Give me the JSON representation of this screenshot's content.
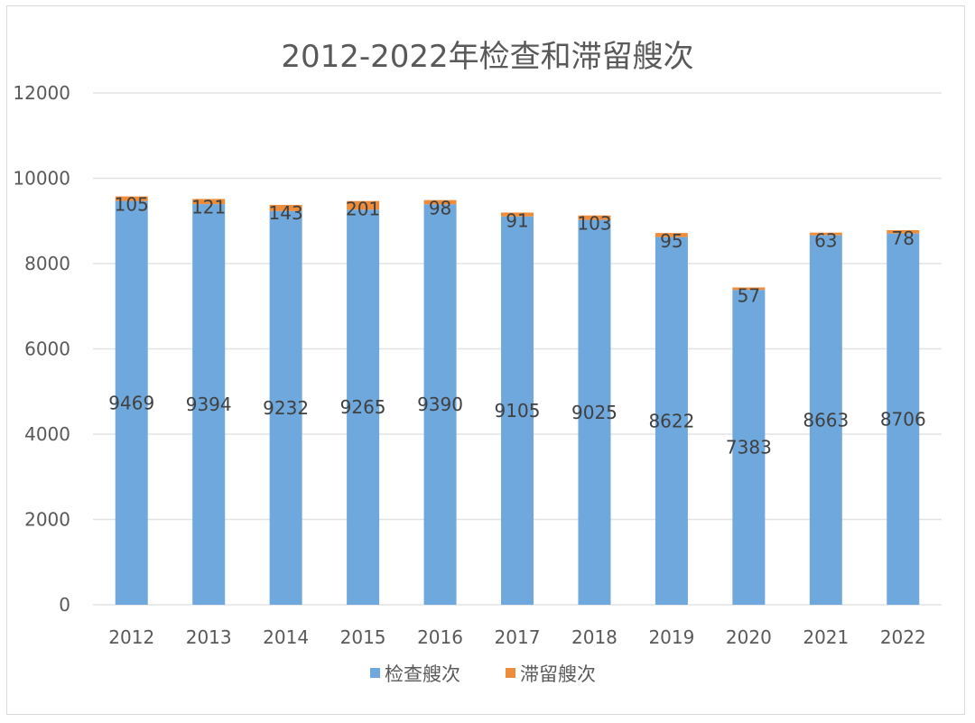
{
  "chart_data": {
    "type": "bar",
    "stacked": true,
    "title": "2012-2022年检查和滞留艘次",
    "xlabel": "",
    "ylabel": "",
    "categories": [
      "2012",
      "2013",
      "2014",
      "2015",
      "2016",
      "2017",
      "2018",
      "2019",
      "2020",
      "2021",
      "2022"
    ],
    "series": [
      {
        "name": "检查艘次",
        "color": "#6fa8dc",
        "values": [
          9469,
          9394,
          9232,
          9265,
          9390,
          9105,
          9025,
          8622,
          7383,
          8663,
          8706
        ]
      },
      {
        "name": "滞留艘次",
        "color": "#ed8c3b",
        "values": [
          105,
          121,
          143,
          201,
          98,
          91,
          103,
          95,
          57,
          63,
          78
        ]
      }
    ],
    "ylim": [
      0,
      12000
    ],
    "yticks": [
      "0",
      "2000",
      "4000",
      "6000",
      "8000",
      "10000",
      "12000"
    ],
    "grid": true,
    "legend_position": "bottom",
    "data_labels": true
  }
}
